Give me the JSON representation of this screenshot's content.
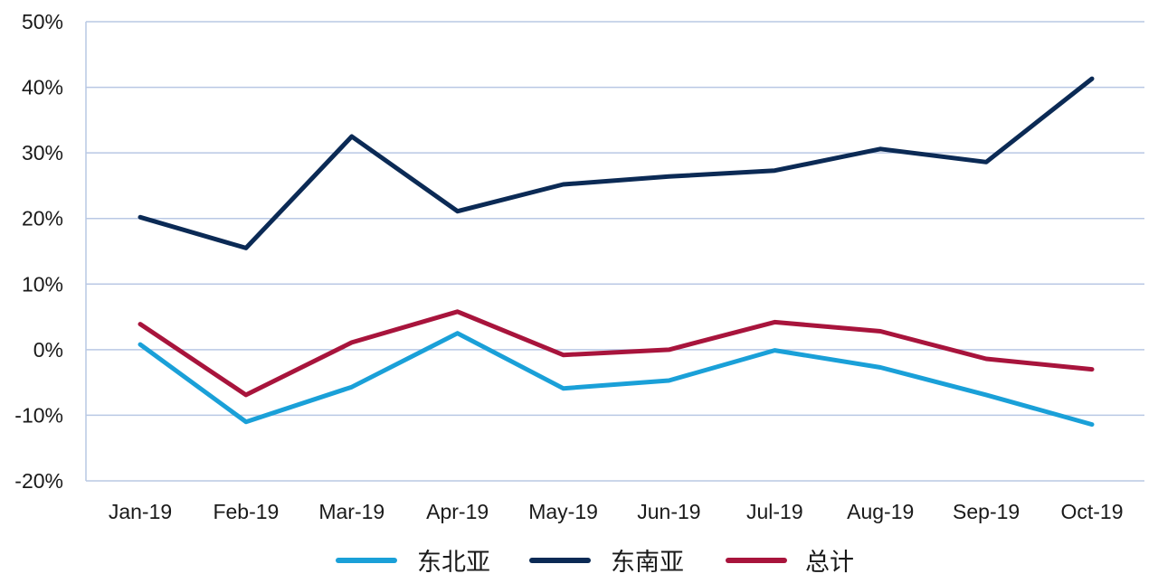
{
  "chart_data": {
    "type": "line",
    "categories": [
      "Jan-19",
      "Feb-19",
      "Mar-19",
      "Apr-19",
      "May-19",
      "Jun-19",
      "Jul-19",
      "Aug-19",
      "Sep-19",
      "Oct-19"
    ],
    "y_ticks": [
      "50%",
      "40%",
      "30%",
      "20%",
      "10%",
      "0%",
      "-10%",
      "-20%"
    ],
    "ylim": [
      -20,
      50
    ],
    "grid": true,
    "legend_position": "bottom",
    "series": [
      {
        "name": "东北亚",
        "color": "#1aa0d8",
        "values": [
          0.8,
          -11,
          -5.7,
          2.5,
          -5.9,
          -4.7,
          -0.1,
          -2.7,
          -6.9,
          -11.4
        ]
      },
      {
        "name": "东南亚",
        "color": "#0b2a55",
        "values": [
          20.2,
          15.5,
          32.5,
          21.1,
          25.2,
          26.4,
          27.3,
          30.6,
          28.6,
          41.3
        ]
      },
      {
        "name": "总计",
        "color": "#a8143c",
        "values": [
          3.9,
          -6.9,
          1.1,
          5.8,
          -0.8,
          0.0,
          4.2,
          2.8,
          -1.4,
          -3.0
        ]
      }
    ]
  }
}
